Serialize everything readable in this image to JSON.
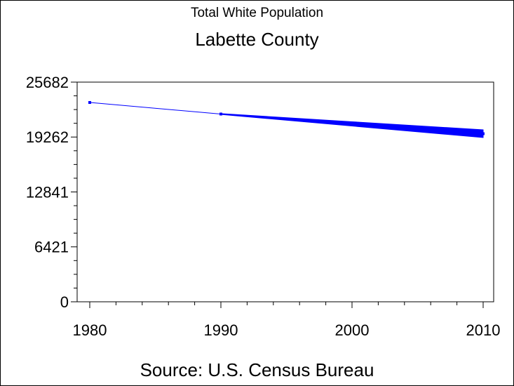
{
  "chart_data": {
    "type": "line",
    "title": "Total White Population",
    "subtitle": "Labette County",
    "footnote": "Source: U.S. Census Bureau",
    "x": [
      1980,
      1990,
      2000,
      2010
    ],
    "series": [
      {
        "values": [
          23300,
          21950,
          20800,
          19650
        ]
      }
    ],
    "band": [
      {
        "x": 1990,
        "low": 21900,
        "high": 22000
      },
      {
        "x": 2000,
        "low": 20550,
        "high": 21050
      },
      {
        "x": 2010,
        "low": 19200,
        "high": 20100
      }
    ],
    "xlim": [
      1980,
      2010
    ],
    "ylim": [
      0,
      25682
    ],
    "xticks": [
      "1980",
      "1990",
      "2000",
      "2010"
    ],
    "yticks": [
      "0",
      "6421",
      "12841",
      "19262",
      "25682"
    ],
    "color": "#0000ff",
    "grid": false
  }
}
